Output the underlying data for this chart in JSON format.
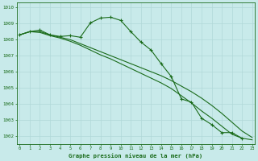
{
  "title": "Graphe pression niveau de la mer (hPa)",
  "background_color": "#c8eaea",
  "grid_color": "#b0d8d8",
  "line_color": "#1a6b1a",
  "ylim": [
    1001.5,
    1010.3
  ],
  "yticks": [
    1002,
    1003,
    1004,
    1005,
    1006,
    1007,
    1008,
    1009,
    1010
  ],
  "xlim": [
    -0.3,
    23.3
  ],
  "series1_x": [
    0,
    1,
    2,
    3,
    4,
    5,
    6,
    7,
    8,
    9,
    10,
    11,
    12,
    13,
    14,
    15,
    16,
    17,
    18,
    19,
    20,
    21,
    22
  ],
  "series1_y": [
    1008.3,
    1008.5,
    1008.6,
    1008.3,
    1008.2,
    1008.25,
    1008.15,
    1009.05,
    1009.35,
    1009.4,
    1009.2,
    1008.5,
    1007.85,
    1007.35,
    1006.5,
    1005.7,
    1004.3,
    1004.1,
    1003.1,
    1002.7,
    1002.2,
    1002.2,
    1001.85
  ],
  "series2_x": [
    0,
    1,
    2,
    3,
    4,
    5,
    6,
    7,
    8,
    9,
    10,
    11,
    12,
    13,
    14,
    15,
    16,
    17,
    18,
    19,
    20,
    21,
    22,
    23
  ],
  "series2_y": [
    1008.3,
    1008.5,
    1008.5,
    1008.3,
    1008.15,
    1008.0,
    1007.75,
    1007.5,
    1007.25,
    1007.0,
    1006.75,
    1006.5,
    1006.25,
    1006.0,
    1005.75,
    1005.45,
    1005.1,
    1004.75,
    1004.35,
    1003.9,
    1003.4,
    1002.85,
    1002.3,
    1001.9
  ],
  "series3_x": [
    0,
    1,
    2,
    3,
    4,
    5,
    6,
    7,
    8,
    9,
    10,
    11,
    12,
    13,
    14,
    15,
    16,
    17,
    18,
    19,
    20,
    21,
    22,
    23
  ],
  "series3_y": [
    1008.3,
    1008.5,
    1008.45,
    1008.25,
    1008.1,
    1007.9,
    1007.65,
    1007.35,
    1007.05,
    1006.8,
    1006.5,
    1006.2,
    1005.9,
    1005.6,
    1005.3,
    1004.95,
    1004.5,
    1004.05,
    1003.55,
    1003.1,
    1002.6,
    1002.1,
    1001.85,
    1001.75
  ]
}
